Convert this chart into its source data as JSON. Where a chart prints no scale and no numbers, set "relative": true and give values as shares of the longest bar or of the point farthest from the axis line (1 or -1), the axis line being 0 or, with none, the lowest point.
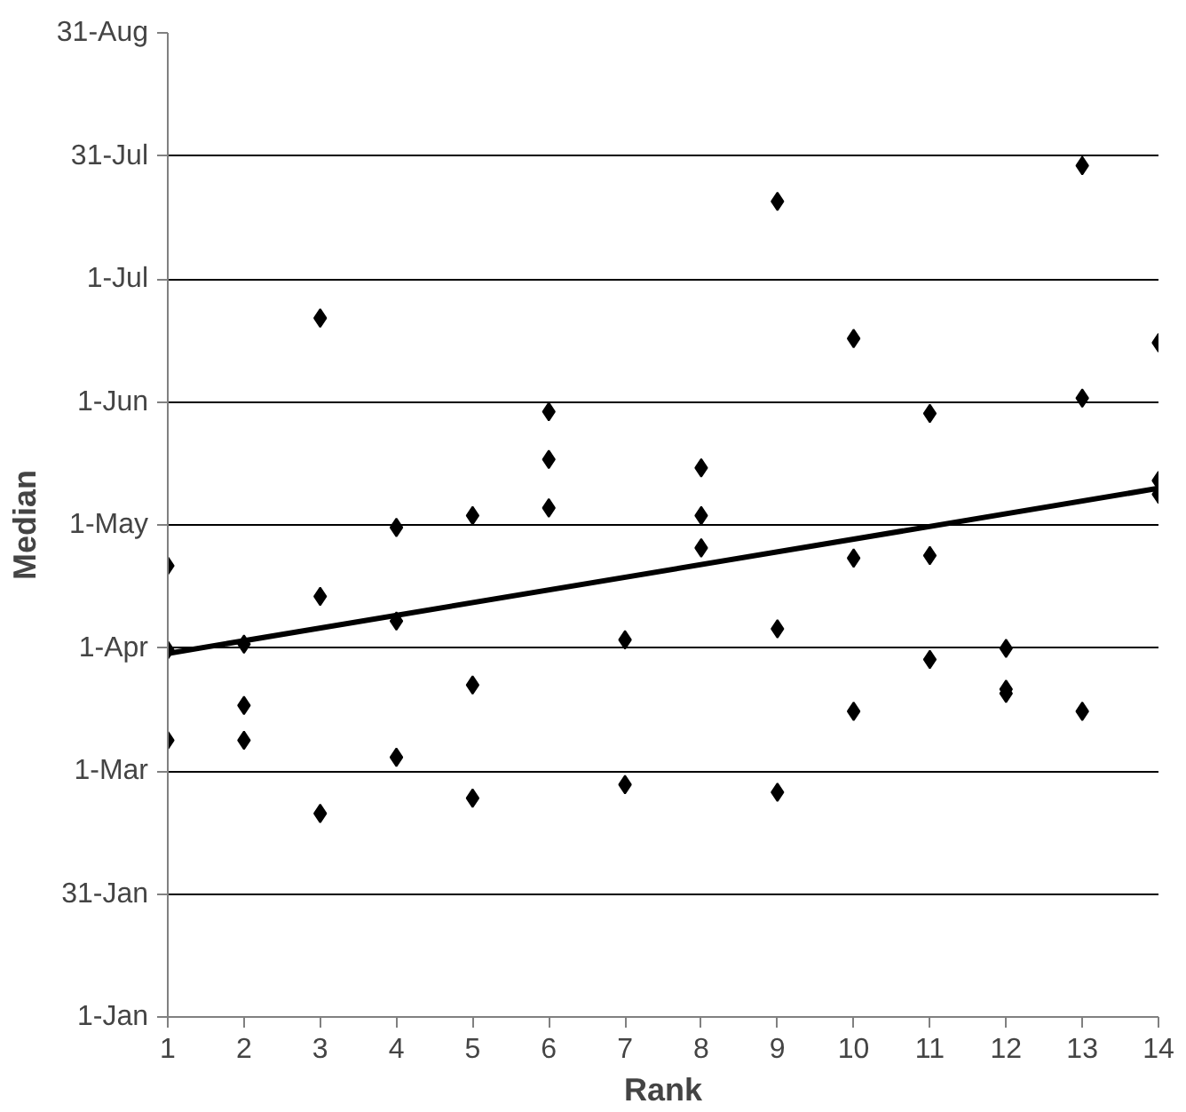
{
  "chart_data": {
    "type": "scatter",
    "xlabel": "Rank",
    "ylabel": "Median",
    "marker": "diamond",
    "grid": "y",
    "relative": true,
    "xlim": [
      1,
      14
    ],
    "xticks": [
      1,
      2,
      3,
      4,
      5,
      6,
      7,
      8,
      9,
      10,
      11,
      12,
      13,
      14
    ],
    "ylim": [
      0,
      1.156
    ],
    "annotations": [
      "1-Jan",
      "31-Jan",
      "1-Mar",
      "1-Apr",
      "1-May",
      "1-Jun",
      "1-Jul",
      "31-Jul",
      "31-Aug"
    ],
    "series": [
      {
        "color": "#000000",
        "x": [
          1,
          1,
          1,
          2,
          2,
          2,
          3,
          3,
          3,
          4,
          4,
          4,
          5,
          5,
          5,
          6,
          6,
          6,
          7,
          7,
          8,
          8,
          8,
          9,
          9,
          9,
          10,
          10,
          10,
          11,
          11,
          11,
          12,
          12,
          12,
          13,
          13,
          13,
          14,
          14,
          14
        ],
        "values": [
          0.53,
          0.431,
          0.325,
          0.438,
          0.366,
          0.325,
          0.821,
          0.494,
          0.239,
          0.575,
          0.465,
          0.305,
          0.589,
          0.39,
          0.257,
          0.711,
          0.655,
          0.598,
          0.443,
          0.273,
          0.645,
          0.589,
          0.551,
          0.958,
          0.456,
          0.264,
          0.797,
          0.539,
          0.359,
          0.709,
          0.542,
          0.42,
          0.433,
          0.385,
          0.38,
          1,
          0.727,
          0.359,
          0.792,
          0.63,
          0.614
        ]
      },
      {
        "type": "line",
        "color": "#000000",
        "marker": "none",
        "line_style": "solid",
        "x": [
          1,
          14
        ],
        "values": [
          0.427,
          0.621
        ]
      }
    ]
  }
}
